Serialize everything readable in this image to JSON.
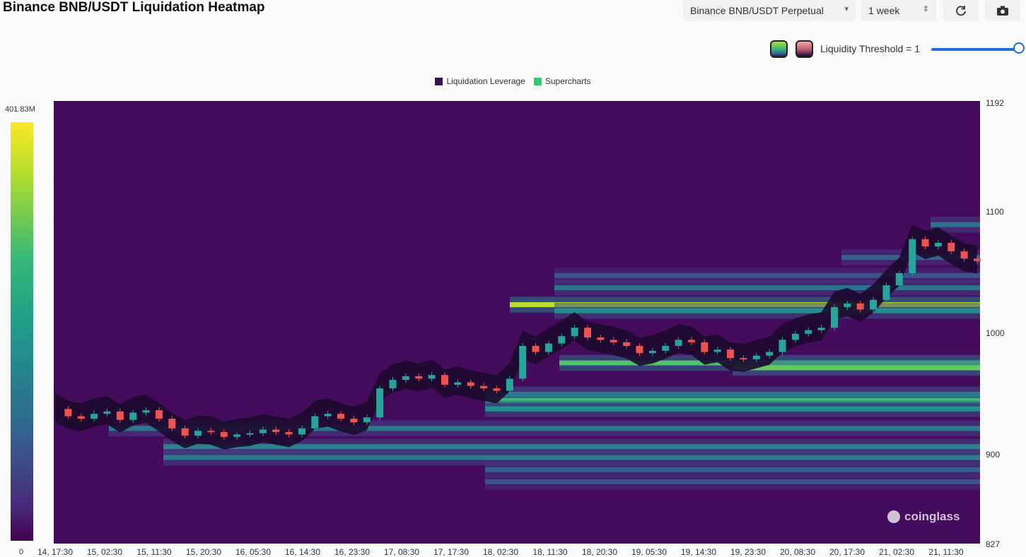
{
  "title": "Binance BNB/USDT Liquidation Heatmap",
  "controls": {
    "exchange": "Binance BNB/USDT Perpetual",
    "range": "1 week",
    "threshold_label": "Liquidity Threshold = 1",
    "threshold_value": 1
  },
  "colorbar": {
    "max_label": "401.83M",
    "min_label": "0"
  },
  "watermark": "coinglass",
  "colors": {
    "accent": "#1a6fd8",
    "legend_leverage": "#3b0f5a",
    "legend_supercharts": "#2ecc71",
    "candle_up": "#26a69a",
    "candle_down": "#ef5350"
  },
  "icons": {
    "refresh": "refresh-icon",
    "camera": "camera-icon"
  },
  "chart_data": {
    "type": "heatmap",
    "legend": [
      "Liquidation Leverage",
      "Supercharts"
    ],
    "legend_position": "top-center",
    "x_ticks": [
      "14, 17:30",
      "15, 02:30",
      "15, 11:30",
      "15, 20:30",
      "16, 05:30",
      "16, 14:30",
      "16, 23:30",
      "17, 08:30",
      "17, 17:30",
      "18, 02:30",
      "18, 11:30",
      "18, 20:30",
      "19, 05:30",
      "19, 14:30",
      "19, 23:30",
      "20, 08:30",
      "20, 17:30",
      "21, 02:30",
      "21, 11:30"
    ],
    "y_ticks": [
      "1192",
      "1100",
      "1000",
      "900",
      "827"
    ],
    "ylim": [
      827,
      1192
    ],
    "colorbar_range": [
      0,
      401830000
    ],
    "price_path": [
      [
        0,
        938
      ],
      [
        1,
        932
      ],
      [
        2,
        930
      ],
      [
        3,
        934
      ],
      [
        4,
        936
      ],
      [
        5,
        929
      ],
      [
        6,
        935
      ],
      [
        7,
        937
      ],
      [
        8,
        930
      ],
      [
        9,
        922
      ],
      [
        10,
        916
      ],
      [
        11,
        920
      ],
      [
        12,
        919
      ],
      [
        13,
        915
      ],
      [
        14,
        917
      ],
      [
        15,
        918
      ],
      [
        16,
        921
      ],
      [
        17,
        919
      ],
      [
        18,
        917
      ],
      [
        19,
        922
      ],
      [
        20,
        932
      ],
      [
        21,
        934
      ],
      [
        22,
        930
      ],
      [
        23,
        927
      ],
      [
        24,
        931
      ],
      [
        25,
        955
      ],
      [
        26,
        962
      ],
      [
        27,
        965
      ],
      [
        28,
        963
      ],
      [
        29,
        966
      ],
      [
        30,
        958
      ],
      [
        31,
        960
      ],
      [
        32,
        957
      ],
      [
        33,
        955
      ],
      [
        34,
        953
      ],
      [
        35,
        963
      ],
      [
        36,
        990
      ],
      [
        37,
        985
      ],
      [
        38,
        992
      ],
      [
        39,
        998
      ],
      [
        40,
        1005
      ],
      [
        41,
        997
      ],
      [
        42,
        995
      ],
      [
        43,
        993
      ],
      [
        44,
        990
      ],
      [
        45,
        984
      ],
      [
        46,
        986
      ],
      [
        47,
        990
      ],
      [
        48,
        995
      ],
      [
        49,
        993
      ],
      [
        50,
        985
      ],
      [
        51,
        987
      ],
      [
        52,
        980
      ],
      [
        53,
        979
      ],
      [
        54,
        982
      ],
      [
        55,
        985
      ],
      [
        56,
        995
      ],
      [
        57,
        1000
      ],
      [
        58,
        1003
      ],
      [
        59,
        1005
      ],
      [
        60,
        1022
      ],
      [
        61,
        1025
      ],
      [
        62,
        1020
      ],
      [
        63,
        1028
      ],
      [
        64,
        1040
      ],
      [
        65,
        1050
      ],
      [
        66,
        1078
      ],
      [
        67,
        1072
      ],
      [
        68,
        1075
      ],
      [
        69,
        1068
      ],
      [
        70,
        1062
      ],
      [
        71,
        1060
      ]
    ],
    "liquidity_bands": [
      {
        "price": 1024,
        "level": 1.0,
        "from_tick": 9.3
      },
      {
        "price": 1019,
        "level": 0.55,
        "from_tick": 10.2
      },
      {
        "price": 976,
        "level": 0.8,
        "from_tick": 10.3
      },
      {
        "price": 972,
        "level": 0.85,
        "from_tick": 13.8
      },
      {
        "price": 950,
        "level": 0.55,
        "from_tick": 8.8
      },
      {
        "price": 945,
        "level": 0.75,
        "from_tick": 8.8
      },
      {
        "price": 938,
        "level": 0.55,
        "from_tick": 8.8
      },
      {
        "price": 922,
        "level": 0.45,
        "from_tick": 1.2
      },
      {
        "price": 907,
        "level": 0.5,
        "from_tick": 2.3
      },
      {
        "price": 898,
        "level": 0.45,
        "from_tick": 2.3
      },
      {
        "price": 888,
        "level": 0.35,
        "from_tick": 8.8
      },
      {
        "price": 878,
        "level": 0.3,
        "from_tick": 8.8
      },
      {
        "price": 1063,
        "level": 0.35,
        "from_tick": 16.0
      },
      {
        "price": 1090,
        "level": 0.42,
        "from_tick": 17.8
      },
      {
        "price": 1038,
        "level": 0.42,
        "from_tick": 10.2
      },
      {
        "price": 1048,
        "level": 0.3,
        "from_tick": 10.2
      }
    ]
  }
}
